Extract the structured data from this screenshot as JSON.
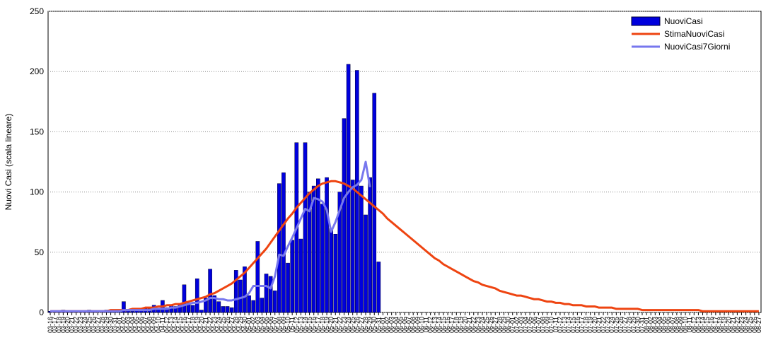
{
  "chart_data": {
    "type": "bar_line",
    "y_label": "Nuovi Casi (scala lineare)",
    "ylim": [
      0,
      250
    ],
    "yticks": [
      0,
      50,
      100,
      150,
      200,
      250
    ],
    "grid": true,
    "legend": "upper right",
    "categories": [
      "03-16",
      "03-17",
      "03-18",
      "03-19",
      "03-20",
      "03-21",
      "03-22",
      "03-23",
      "03-24",
      "03-25",
      "03-26",
      "03-27",
      "03-28",
      "03-29",
      "03-30",
      "03-31",
      "04-01",
      "04-02",
      "04-03",
      "04-04",
      "04-05",
      "04-06",
      "04-07",
      "04-08",
      "04-09",
      "04-10",
      "04-11",
      "04-12",
      "04-13",
      "04-14",
      "04-15",
      "04-16",
      "04-17",
      "04-18",
      "04-19",
      "04-20",
      "04-21",
      "04-22",
      "04-23",
      "04-24",
      "04-25",
      "04-26",
      "04-27",
      "04-28",
      "04-29",
      "04-30",
      "05-01",
      "05-02",
      "05-03",
      "05-04",
      "05-05",
      "05-06",
      "05-07",
      "05-08",
      "05-09",
      "05-10",
      "05-11",
      "05-12",
      "05-13",
      "05-14",
      "05-15",
      "05-16",
      "05-17",
      "05-18",
      "05-19",
      "05-20",
      "05-21",
      "05-22",
      "05-23",
      "05-24",
      "05-25",
      "05-26",
      "05-27",
      "05-28",
      "05-29",
      "05-30",
      "05-31",
      "06-01",
      "06-02",
      "06-03",
      "06-04",
      "06-05",
      "06-06",
      "06-07",
      "06-08",
      "06-09",
      "06-10",
      "06-11",
      "06-12",
      "06-13",
      "06-14",
      "06-15",
      "06-16",
      "06-17",
      "06-18",
      "06-19",
      "06-20",
      "06-21",
      "06-22",
      "06-23",
      "06-24",
      "06-25",
      "06-26",
      "06-27",
      "06-28",
      "06-29",
      "06-30",
      "07-01",
      "07-02",
      "07-03",
      "07-04",
      "07-05",
      "07-06",
      "07-07",
      "07-08",
      "07-09",
      "07-10",
      "07-11",
      "07-12",
      "07-13",
      "07-14",
      "07-15",
      "07-16",
      "07-17",
      "07-18",
      "07-19",
      "07-20",
      "07-21",
      "07-22",
      "07-23",
      "07-24",
      "07-25",
      "07-26",
      "07-27",
      "07-28",
      "07-29",
      "07-30",
      "07-31",
      "08-01",
      "08-02",
      "08-03",
      "08-04",
      "08-05",
      "08-06",
      "08-07",
      "08-08",
      "08-09",
      "08-10",
      "08-11",
      "08-12",
      "08-13",
      "08-14",
      "08-15",
      "08-16",
      "08-17",
      "08-18",
      "08-19",
      "08-20",
      "08-21",
      "08-22",
      "08-23",
      "08-24",
      "08-25",
      "08-26",
      "08-27"
    ],
    "series": [
      {
        "name": "NuoviCasi",
        "kind": "bar",
        "color": "#0000dd",
        "values": [
          1,
          0,
          1,
          2,
          1,
          1,
          0,
          1,
          1,
          2,
          1,
          0,
          1,
          2,
          1,
          1,
          2,
          9,
          2,
          1,
          3,
          2,
          4,
          3,
          6,
          3,
          10,
          4,
          6,
          5,
          7,
          23,
          8,
          6,
          28,
          2,
          12,
          36,
          14,
          9,
          5,
          5,
          4,
          35,
          27,
          38,
          14,
          10,
          59,
          12,
          32,
          30,
          18,
          107,
          116,
          41,
          60,
          141,
          61,
          141,
          100,
          105,
          111,
          90,
          112,
          70,
          65,
          100,
          161,
          206,
          110,
          201,
          105,
          81,
          112,
          182,
          42,
          null,
          null,
          null,
          null,
          null,
          null,
          null,
          null,
          null,
          null,
          null,
          null,
          null,
          null,
          null,
          null,
          null,
          null,
          null,
          null,
          null,
          null,
          null,
          null,
          null,
          null,
          null,
          null,
          null,
          null,
          null,
          null,
          null,
          null,
          null,
          null,
          null,
          null,
          null,
          null,
          null,
          null,
          null,
          null,
          null,
          null,
          null,
          null,
          null,
          null,
          null,
          null,
          null,
          null,
          null,
          null,
          null,
          null,
          null,
          null,
          null,
          null,
          null,
          null,
          null,
          null,
          null,
          null,
          null,
          null,
          null,
          null,
          null,
          null,
          null,
          null,
          null,
          null,
          null,
          null,
          null,
          null,
          null,
          null,
          null,
          null,
          null,
          null
        ]
      },
      {
        "name": "StimaNuoviCasi",
        "kind": "line",
        "color": "#ee4411",
        "values": [
          1,
          1,
          1,
          1,
          1,
          1,
          1,
          1,
          1,
          1,
          1,
          1,
          1,
          1,
          2,
          2,
          2,
          2,
          2,
          3,
          3,
          3,
          4,
          4,
          4,
          5,
          5,
          6,
          6,
          7,
          7,
          8,
          9,
          10,
          11,
          12,
          13,
          15,
          16,
          18,
          20,
          22,
          24,
          27,
          30,
          33,
          37,
          41,
          45,
          49,
          53,
          58,
          63,
          68,
          73,
          78,
          82,
          87,
          91,
          95,
          99,
          102,
          105,
          107,
          108,
          109,
          109,
          108,
          107,
          105,
          103,
          100,
          97,
          94,
          91,
          88,
          85,
          82,
          78,
          75,
          72,
          69,
          66,
          63,
          60,
          57,
          54,
          51,
          48,
          45,
          43,
          40,
          38,
          36,
          34,
          32,
          30,
          28,
          26,
          25,
          23,
          22,
          21,
          20,
          18,
          17,
          16,
          15,
          14,
          14,
          13,
          12,
          11,
          11,
          10,
          9,
          9,
          8,
          8,
          7,
          7,
          6,
          6,
          6,
          5,
          5,
          5,
          4,
          4,
          4,
          4,
          3,
          3,
          3,
          3,
          3,
          3,
          2,
          2,
          2,
          2,
          2,
          2,
          2,
          2,
          2,
          2,
          2,
          2,
          2,
          2,
          1,
          1,
          1,
          1,
          1,
          1,
          1,
          1,
          1,
          1,
          1,
          1,
          1,
          1
        ]
      },
      {
        "name": "NuoviCasi7Giorni",
        "kind": "line",
        "color": "#7777ee",
        "values": [
          1,
          1,
          1,
          1,
          1,
          1,
          1,
          1,
          1,
          1,
          1,
          1,
          1,
          1,
          1,
          1,
          1,
          2,
          2,
          2,
          2,
          2,
          2,
          2,
          3,
          3,
          3,
          3,
          4,
          4,
          5,
          6,
          7,
          8,
          8,
          9,
          10,
          12,
          12,
          11,
          11,
          10,
          10,
          11,
          12,
          13,
          16,
          22,
          22,
          22,
          22,
          20,
          30,
          48,
          47,
          55,
          62,
          70,
          78,
          86,
          84,
          95,
          94,
          92,
          85,
          67,
          75,
          85,
          95,
          100,
          104,
          106,
          110,
          125,
          104,
          null,
          null,
          null,
          null,
          null,
          null,
          null,
          null,
          null,
          null,
          null,
          null,
          null,
          null,
          null,
          null,
          null,
          null,
          null,
          null,
          null,
          null,
          null,
          null,
          null,
          null,
          null,
          null,
          null,
          null,
          null,
          null,
          null,
          null,
          null,
          null,
          null,
          null,
          null,
          null,
          null,
          null,
          null,
          null,
          null,
          null,
          null,
          null,
          null,
          null,
          null,
          null,
          null,
          null,
          null,
          null,
          null,
          null,
          null,
          null,
          null,
          null,
          null,
          null,
          null,
          null,
          null,
          null,
          null,
          null,
          null,
          null,
          null,
          null,
          null,
          null,
          null,
          null,
          null,
          null,
          null,
          null,
          null,
          null,
          null,
          null,
          null,
          null,
          null,
          null
        ]
      }
    ]
  }
}
